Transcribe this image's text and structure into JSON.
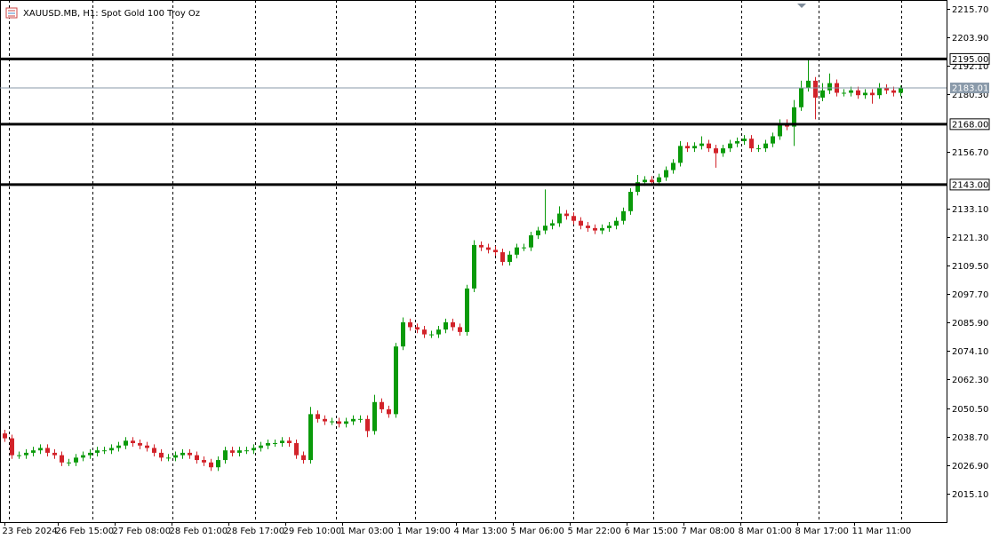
{
  "chart_data": {
    "type": "candlestick",
    "title": "XAUUSD.MB, H1:  Spot Gold 100 Troy Oz",
    "up_color": "#0a9a0a",
    "down_color": "#d2232a",
    "ylim": [
      2003.3,
      2219.4
    ],
    "yticks": [
      {
        "value": 2215.7,
        "label": "2215.70"
      },
      {
        "value": 2203.9,
        "label": "2203.90"
      },
      {
        "value": 2192.1,
        "label": "2192.10"
      },
      {
        "value": 2180.3,
        "label": "2180.30"
      },
      {
        "value": 2156.7,
        "label": "2156.70"
      },
      {
        "value": 2133.1,
        "label": "2133.10"
      },
      {
        "value": 2121.3,
        "label": "2121.30"
      },
      {
        "value": 2109.5,
        "label": "2109.50"
      },
      {
        "value": 2097.7,
        "label": "2097.70"
      },
      {
        "value": 2085.9,
        "label": "2085.90"
      },
      {
        "value": 2074.1,
        "label": "2074.10"
      },
      {
        "value": 2062.3,
        "label": "2062.30"
      },
      {
        "value": 2050.5,
        "label": "2050.50"
      },
      {
        "value": 2038.7,
        "label": "2038.70"
      },
      {
        "value": 2026.9,
        "label": "2026.90"
      },
      {
        "value": 2015.1,
        "label": "2015.10"
      }
    ],
    "xlim": [
      -0.625,
      132.5
    ],
    "xticks": [
      {
        "value": 0,
        "label": "23 Feb 2024"
      },
      {
        "value": 7.5,
        "label": "26 Feb 15:00"
      },
      {
        "value": 15.5,
        "label": "27 Feb 08:00"
      },
      {
        "value": 23.5,
        "label": "28 Feb 01:00"
      },
      {
        "value": 31.5,
        "label": "28 Feb 17:00"
      },
      {
        "value": 39.5,
        "label": "29 Feb 10:00"
      },
      {
        "value": 47.5,
        "label": "1 Mar 03:00"
      },
      {
        "value": 55.5,
        "label": "1 Mar 19:00"
      },
      {
        "value": 63.5,
        "label": "4 Mar 13:00"
      },
      {
        "value": 71.5,
        "label": "5 Mar 06:00"
      },
      {
        "value": 79.5,
        "label": "5 Mar 22:00"
      },
      {
        "value": 87.5,
        "label": "6 Mar 15:00"
      },
      {
        "value": 95.5,
        "label": "7 Mar 08:00"
      },
      {
        "value": 103.5,
        "label": "8 Mar 01:00"
      },
      {
        "value": 111.5,
        "label": "8 Mar 17:00"
      },
      {
        "value": 119.5,
        "label": "11 Mar 11:00"
      }
    ],
    "levels": [
      {
        "value": 2195,
        "label": "2195.00"
      },
      {
        "value": 2168,
        "label": "2168.00"
      },
      {
        "value": 2143,
        "label": "2143.00"
      }
    ],
    "current_price": {
      "value": 2183.01,
      "label": "2183.01"
    },
    "open": [
      2040,
      2038,
      2031,
      2031,
      2032,
      2033,
      2034,
      2032,
      2031,
      2028,
      2028,
      2030,
      2031,
      2032,
      2033,
      2033,
      2034,
      2035,
      2037,
      2036,
      2035,
      2034,
      2032,
      2030,
      2030,
      2031,
      2032,
      2031,
      2029,
      2028,
      2026,
      2029,
      2033,
      2032,
      2033,
      2033,
      2034,
      2035,
      2036,
      2036,
      2037,
      2036,
      2031,
      2029,
      2048,
      2046,
      2045,
      2045,
      2044,
      2045,
      2046,
      2046,
      2041,
      2053,
      2050,
      2048,
      2076,
      2086,
      2084,
      2083,
      2081,
      2081,
      2083,
      2086,
      2084,
      2082,
      2100,
      2118,
      2117,
      2116,
      2115,
      2111,
      2114,
      2117,
      2117,
      2122,
      2124,
      2126,
      2127,
      2131,
      2130,
      2128,
      2126,
      2125,
      2124,
      2125,
      2126,
      2128,
      2132,
      2140,
      2144,
      2145,
      2144,
      2146,
      2149,
      2152,
      2159,
      2158,
      2159,
      2160,
      2158,
      2156,
      2158,
      2160,
      2161,
      2162,
      2158,
      2158,
      2160,
      2163,
      2168,
      2167,
      2175,
      2183,
      2186,
      2179,
      2182,
      2185,
      2181,
      2181,
      2182,
      2180,
      2181,
      2180,
      2183,
      2182,
      2181
    ],
    "high": [
      2041.5,
      2039.5,
      2032.5,
      2033.5,
      2034.5,
      2035.5,
      2035.5,
      2033.5,
      2032.5,
      2029.5,
      2031.5,
      2032.5,
      2033.5,
      2034.5,
      2034.5,
      2035.5,
      2036.5,
      2038.5,
      2038.5,
      2037.5,
      2036.5,
      2035.5,
      2033.5,
      2031.5,
      2032.5,
      2033.5,
      2033.5,
      2032.5,
      2030.5,
      2029.5,
      2030.5,
      2034.5,
      2034.5,
      2034.5,
      2034.5,
      2035.5,
      2036.5,
      2037.5,
      2037.5,
      2038.5,
      2038.5,
      2037.5,
      2032.5,
      2051,
      2049.5,
      2047.5,
      2046.5,
      2046.5,
      2046.5,
      2047.5,
      2047.5,
      2047.5,
      2056,
      2054.5,
      2051.5,
      2077.5,
      2088,
      2087.5,
      2085.5,
      2084.5,
      2082.5,
      2084.5,
      2087.5,
      2087.5,
      2085.5,
      2101.5,
      2120,
      2119.5,
      2118.5,
      2117.5,
      2116.5,
      2115.5,
      2118.5,
      2118.5,
      2123.5,
      2125.5,
      2141,
      2128.5,
      2134,
      2132.5,
      2131.5,
      2129.5,
      2127.5,
      2126.5,
      2126.5,
      2127.5,
      2129.5,
      2133.5,
      2141.5,
      2147,
      2146.5,
      2146.5,
      2147.5,
      2150.5,
      2153.5,
      2161,
      2160.5,
      2160.5,
      2163,
      2161.5,
      2159.5,
      2159.5,
      2161.5,
      2162.5,
      2163.5,
      2163.5,
      2159.5,
      2161.5,
      2164.5,
      2170,
      2170,
      2178,
      2186,
      2195,
      2187.5,
      2185,
      2189,
      2186.5,
      2182.5,
      2183.5,
      2183.5,
      2182.5,
      2182.5,
      2185,
      2184.5,
      2183.5,
      2184
    ],
    "low": [
      2036.5,
      2029.5,
      2029.5,
      2029.5,
      2030.5,
      2031.5,
      2030.5,
      2029.5,
      2026.5,
      2026.5,
      2026.5,
      2028.5,
      2029.5,
      2030.5,
      2031.5,
      2031.5,
      2032.5,
      2033.5,
      2034.5,
      2033.5,
      2032.5,
      2030.5,
      2028.5,
      2028.5,
      2028.5,
      2029.5,
      2029.5,
      2027.5,
      2026.5,
      2024.5,
      2024.5,
      2027.5,
      2030.5,
      2030.5,
      2031.5,
      2031.5,
      2032.5,
      2033.5,
      2034.5,
      2034.5,
      2034.5,
      2029.5,
      2027.5,
      2027.5,
      2044.5,
      2043.5,
      2043.5,
      2042.5,
      2042.5,
      2043.5,
      2044.5,
      2038.5,
      2039.5,
      2048.5,
      2046.5,
      2046.5,
      2074.5,
      2082.5,
      2081.5,
      2079.5,
      2079.5,
      2079.5,
      2081.5,
      2082.5,
      2080.5,
      2080.5,
      2098.5,
      2115.5,
      2114.5,
      2113.5,
      2109.5,
      2109.5,
      2112.5,
      2115.5,
      2115.5,
      2120.5,
      2122.5,
      2124.5,
      2125.5,
      2128.5,
      2126.5,
      2124.5,
      2123.5,
      2122.5,
      2122.5,
      2123.5,
      2124.5,
      2126.5,
      2130.5,
      2138.5,
      2142.5,
      2142.5,
      2142.5,
      2144.5,
      2147.5,
      2150.5,
      2156.5,
      2156.5,
      2157.5,
      2156.5,
      2150,
      2154.5,
      2156.5,
      2158.5,
      2159.5,
      2156.5,
      2156.5,
      2156.5,
      2158.5,
      2161.5,
      2165.5,
      2159,
      2173.5,
      2181.5,
      2170,
      2177.5,
      2180.5,
      2179.5,
      2179.5,
      2179.5,
      2178.5,
      2178.5,
      2176.5,
      2178.5,
      2180.5,
      2179.5,
      2179.5
    ],
    "close": [
      2038,
      2031,
      2031,
      2032,
      2033,
      2034,
      2032,
      2031,
      2028,
      2028,
      2030,
      2031,
      2032,
      2033,
      2033,
      2034,
      2035,
      2037,
      2036,
      2035,
      2034,
      2032,
      2030,
      2030,
      2031,
      2032,
      2031,
      2029,
      2028,
      2026,
      2029,
      2033,
      2032,
      2033,
      2033,
      2034,
      2035,
      2036,
      2036,
      2037,
      2036,
      2031,
      2029,
      2048,
      2046,
      2045,
      2045,
      2044,
      2045,
      2046,
      2046,
      2041,
      2053,
      2050,
      2048,
      2076,
      2086,
      2084,
      2083,
      2081,
      2081,
      2083,
      2086,
      2084,
      2082,
      2100,
      2118,
      2117,
      2116,
      2115,
      2111,
      2114,
      2117,
      2117,
      2122,
      2124,
      2126,
      2127,
      2131,
      2130,
      2128,
      2126,
      2125,
      2124,
      2125,
      2126,
      2128,
      2132,
      2140,
      2144,
      2145,
      2144,
      2146,
      2149,
      2152,
      2159,
      2158,
      2159,
      2160,
      2158,
      2156,
      2158,
      2160,
      2161,
      2162,
      2158,
      2158,
      2160,
      2163,
      2168,
      2167,
      2175,
      2183,
      2186,
      2179,
      2182,
      2185,
      2181,
      2181,
      2182,
      2180,
      2181,
      2180,
      2183,
      2182,
      2181,
      2183.01
    ]
  }
}
